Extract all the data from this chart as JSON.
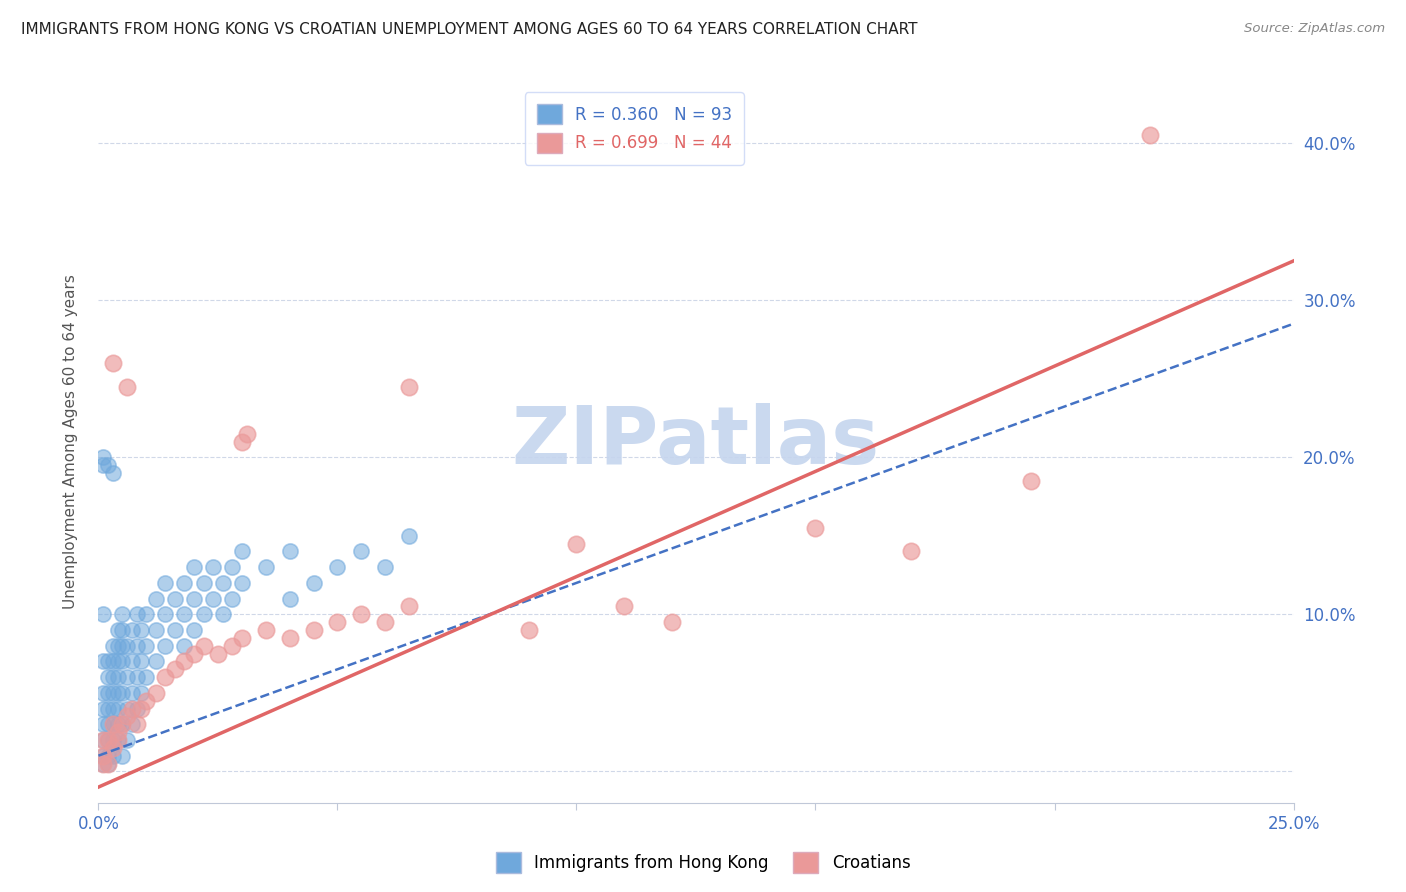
{
  "title": "IMMIGRANTS FROM HONG KONG VS CROATIAN UNEMPLOYMENT AMONG AGES 60 TO 64 YEARS CORRELATION CHART",
  "source": "Source: ZipAtlas.com",
  "ylabel": "Unemployment Among Ages 60 to 64 years",
  "xlim": [
    0,
    0.25
  ],
  "ylim": [
    -0.02,
    0.44
  ],
  "xticks": [
    0.0,
    0.05,
    0.1,
    0.15,
    0.2,
    0.25
  ],
  "yticks": [
    0.0,
    0.1,
    0.2,
    0.3,
    0.4
  ],
  "R_blue": 0.36,
  "N_blue": 93,
  "R_pink": 0.699,
  "N_pink": 44,
  "blue_color": "#6fa8dc",
  "pink_color": "#ea9999",
  "trend_blue_color": "#4472c4",
  "trend_pink_color": "#e06666",
  "watermark": "ZIPatlas",
  "watermark_color_zip": "#c9d3f0",
  "watermark_color_atlas": "#7fa8d0",
  "legend_label_blue": "Immigrants from Hong Kong",
  "legend_label_pink": "Croatians",
  "blue_trend_x0": 0.0,
  "blue_trend_y0": 0.01,
  "blue_trend_x1": 0.25,
  "blue_trend_y1": 0.285,
  "pink_trend_x0": 0.0,
  "pink_trend_y0": -0.01,
  "pink_trend_x1": 0.25,
  "pink_trend_y1": 0.325,
  "blue_scatter": [
    [
      0.001,
      0.005
    ],
    [
      0.001,
      0.01
    ],
    [
      0.001,
      0.02
    ],
    [
      0.001,
      0.03
    ],
    [
      0.001,
      0.04
    ],
    [
      0.001,
      0.05
    ],
    [
      0.001,
      0.07
    ],
    [
      0.001,
      0.1
    ],
    [
      0.002,
      0.005
    ],
    [
      0.002,
      0.01
    ],
    [
      0.002,
      0.02
    ],
    [
      0.002,
      0.03
    ],
    [
      0.002,
      0.04
    ],
    [
      0.002,
      0.05
    ],
    [
      0.002,
      0.06
    ],
    [
      0.002,
      0.07
    ],
    [
      0.003,
      0.01
    ],
    [
      0.003,
      0.02
    ],
    [
      0.003,
      0.03
    ],
    [
      0.003,
      0.04
    ],
    [
      0.003,
      0.05
    ],
    [
      0.003,
      0.06
    ],
    [
      0.003,
      0.07
    ],
    [
      0.003,
      0.08
    ],
    [
      0.004,
      0.02
    ],
    [
      0.004,
      0.03
    ],
    [
      0.004,
      0.04
    ],
    [
      0.004,
      0.05
    ],
    [
      0.004,
      0.06
    ],
    [
      0.004,
      0.07
    ],
    [
      0.004,
      0.08
    ],
    [
      0.004,
      0.09
    ],
    [
      0.005,
      0.01
    ],
    [
      0.005,
      0.03
    ],
    [
      0.005,
      0.05
    ],
    [
      0.005,
      0.07
    ],
    [
      0.005,
      0.08
    ],
    [
      0.005,
      0.09
    ],
    [
      0.005,
      0.1
    ],
    [
      0.006,
      0.02
    ],
    [
      0.006,
      0.04
    ],
    [
      0.006,
      0.06
    ],
    [
      0.006,
      0.08
    ],
    [
      0.007,
      0.03
    ],
    [
      0.007,
      0.05
    ],
    [
      0.007,
      0.07
    ],
    [
      0.007,
      0.09
    ],
    [
      0.008,
      0.04
    ],
    [
      0.008,
      0.06
    ],
    [
      0.008,
      0.08
    ],
    [
      0.008,
      0.1
    ],
    [
      0.009,
      0.05
    ],
    [
      0.009,
      0.07
    ],
    [
      0.009,
      0.09
    ],
    [
      0.01,
      0.06
    ],
    [
      0.01,
      0.08
    ],
    [
      0.01,
      0.1
    ],
    [
      0.012,
      0.07
    ],
    [
      0.012,
      0.09
    ],
    [
      0.012,
      0.11
    ],
    [
      0.014,
      0.08
    ],
    [
      0.014,
      0.1
    ],
    [
      0.014,
      0.12
    ],
    [
      0.016,
      0.09
    ],
    [
      0.016,
      0.11
    ],
    [
      0.018,
      0.08
    ],
    [
      0.018,
      0.1
    ],
    [
      0.018,
      0.12
    ],
    [
      0.02,
      0.09
    ],
    [
      0.02,
      0.11
    ],
    [
      0.02,
      0.13
    ],
    [
      0.022,
      0.1
    ],
    [
      0.022,
      0.12
    ],
    [
      0.024,
      0.11
    ],
    [
      0.024,
      0.13
    ],
    [
      0.026,
      0.1
    ],
    [
      0.026,
      0.12
    ],
    [
      0.028,
      0.11
    ],
    [
      0.028,
      0.13
    ],
    [
      0.03,
      0.12
    ],
    [
      0.03,
      0.14
    ],
    [
      0.035,
      0.13
    ],
    [
      0.04,
      0.11
    ],
    [
      0.04,
      0.14
    ],
    [
      0.003,
      0.19
    ],
    [
      0.001,
      0.195
    ],
    [
      0.045,
      0.12
    ],
    [
      0.05,
      0.13
    ],
    [
      0.055,
      0.14
    ],
    [
      0.06,
      0.13
    ],
    [
      0.065,
      0.15
    ],
    [
      0.001,
      0.2
    ],
    [
      0.002,
      0.195
    ]
  ],
  "pink_scatter": [
    [
      0.001,
      0.005
    ],
    [
      0.001,
      0.01
    ],
    [
      0.002,
      0.005
    ],
    [
      0.001,
      0.02
    ],
    [
      0.002,
      0.02
    ],
    [
      0.003,
      0.03
    ],
    [
      0.003,
      0.015
    ],
    [
      0.004,
      0.02
    ],
    [
      0.004,
      0.025
    ],
    [
      0.005,
      0.03
    ],
    [
      0.006,
      0.035
    ],
    [
      0.007,
      0.04
    ],
    [
      0.008,
      0.03
    ],
    [
      0.009,
      0.04
    ],
    [
      0.01,
      0.045
    ],
    [
      0.012,
      0.05
    ],
    [
      0.014,
      0.06
    ],
    [
      0.016,
      0.065
    ],
    [
      0.018,
      0.07
    ],
    [
      0.02,
      0.075
    ],
    [
      0.022,
      0.08
    ],
    [
      0.025,
      0.075
    ],
    [
      0.028,
      0.08
    ],
    [
      0.03,
      0.085
    ],
    [
      0.035,
      0.09
    ],
    [
      0.04,
      0.085
    ],
    [
      0.045,
      0.09
    ],
    [
      0.05,
      0.095
    ],
    [
      0.055,
      0.1
    ],
    [
      0.06,
      0.095
    ],
    [
      0.065,
      0.105
    ],
    [
      0.03,
      0.21
    ],
    [
      0.031,
      0.215
    ],
    [
      0.065,
      0.245
    ],
    [
      0.17,
      0.14
    ],
    [
      0.006,
      0.245
    ],
    [
      0.11,
      0.105
    ],
    [
      0.22,
      0.405
    ],
    [
      0.003,
      0.26
    ],
    [
      0.1,
      0.145
    ],
    [
      0.15,
      0.155
    ],
    [
      0.195,
      0.185
    ],
    [
      0.12,
      0.095
    ],
    [
      0.09,
      0.09
    ]
  ]
}
